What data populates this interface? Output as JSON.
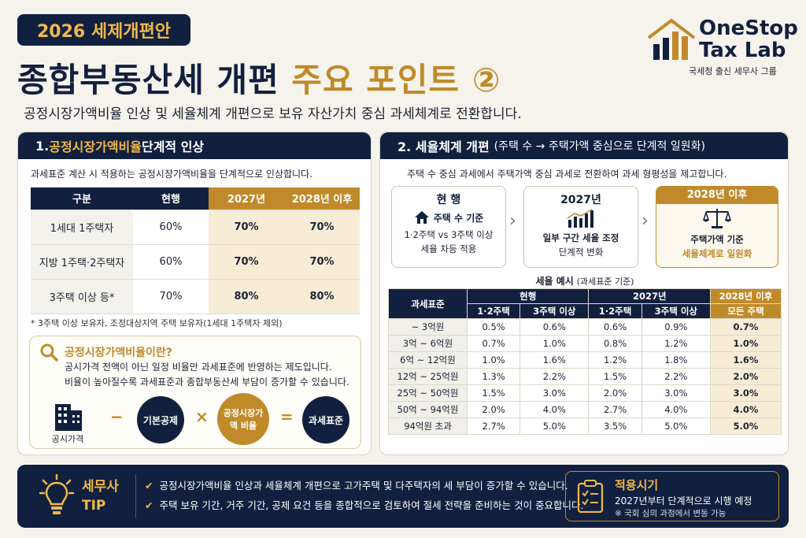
{
  "header": {
    "badge": "2026 세제개편안",
    "title_main": "종합부동산세 개편 ",
    "title_highlight": "주요 포인트 ②",
    "subtitle": "공정시장가액비율 인상 및 세율체계 개편으로 보유 자산가치 중심 과세체계로 전환합니다."
  },
  "logo": {
    "line1": "OneStop",
    "line2": "Tax Lab",
    "tagline": "국세청 출신 세무사 그룹"
  },
  "left": {
    "heading_prefix": "1. ",
    "heading_accent": "공정시장가액비율",
    "heading_suffix": " 단계적 인상",
    "desc": "과세표준 계산 시 적용하는 공정시장가액비율을 단계적으로 인상합니다.",
    "table": {
      "headers": [
        "구분",
        "현행",
        "2027년",
        "2028년 이후"
      ],
      "rows": [
        [
          "1세대 1주택자",
          "60%",
          "70%",
          "70%"
        ],
        [
          "지방 1주택·2주택자",
          "60%",
          "70%",
          "70%"
        ],
        [
          "3주택 이상 등*",
          "70%",
          "80%",
          "80%"
        ]
      ]
    },
    "note": "* 3주택 이상 보유자, 조정대상지역 주택 보유자(1세대 1주택자 제외)",
    "info": {
      "title": "공정시장가액비율이란?",
      "line1": "공시가격 전액이 아닌 일정 비율만 과세표준에 반영하는 제도입니다.",
      "line2": "비율이 높아질수록 과세표준과 종합부동산세 부담이 증가할 수 있습니다.",
      "formula": {
        "item1": "공시가격",
        "op1": "−",
        "item2": "기본공제",
        "op2": "×",
        "item3": "공정시장가액 비율",
        "op3": "=",
        "item4": "과세표준"
      }
    }
  },
  "right": {
    "heading_main": "2. 세율체계 개편",
    "heading_small": "(주택 수 → 주택가액 중심으로 단계적 일원화)",
    "desc": "주택 수 중심 과세에서 주택가액 중심 과세로 전환하여 과세 형평성을 제고합니다.",
    "flow": [
      {
        "title": "현 행",
        "sub": "주택 수 기준",
        "l1": "1·2주택 vs 3주택 이상",
        "l2": "세율 차등 적용"
      },
      {
        "title": "2027년",
        "sub": "",
        "l1": "일부 구간 세율 조정",
        "l2": "단계적 변화"
      },
      {
        "title": "2028년 이후",
        "sub": "",
        "l1": "주택가액 기준",
        "l2": "세율체계로 일원화"
      }
    ],
    "table_caption": "세율 예시",
    "table_caption_small": "(과세표준 기준)",
    "table": {
      "h_base": "과세표준",
      "h_current": "현행",
      "h_2027": "2027년",
      "h_2028": "2028년 이후",
      "sub_a": "1·2주택",
      "sub_b": "3주택 이상",
      "sub_all": "모든 주택",
      "rows": [
        [
          "~ 3억원",
          "0.5%",
          "0.6%",
          "0.6%",
          "0.9%",
          "0.7%"
        ],
        [
          "3억 ~ 6억원",
          "0.7%",
          "1.0%",
          "0.8%",
          "1.2%",
          "1.0%"
        ],
        [
          "6억 ~ 12억원",
          "1.0%",
          "1.6%",
          "1.2%",
          "1.8%",
          "1.6%"
        ],
        [
          "12억 ~ 25억원",
          "1.3%",
          "2.2%",
          "1.5%",
          "2.2%",
          "2.0%"
        ],
        [
          "25억 ~ 50억원",
          "1.5%",
          "3.0%",
          "2.0%",
          "3.0%",
          "3.0%"
        ],
        [
          "50억 ~ 94억원",
          "2.0%",
          "4.0%",
          "2.7%",
          "4.0%",
          "4.0%"
        ],
        [
          "94억원 초과",
          "2.7%",
          "5.0%",
          "3.5%",
          "5.0%",
          "5.0%"
        ]
      ]
    }
  },
  "bottom": {
    "tip_l1": "세무사",
    "tip_l2": "TIP",
    "tips": [
      "공정시장가액비율 인상과 세율체계 개편으로 고가주택 및 다주택자의 세 부담이 증가할 수 있습니다.",
      "주택 보유 기간, 거주 기간, 공제 요건 등을 종합적으로 검토하여 절세 전략을 준비하는 것이 중요합니다."
    ],
    "apply_title": "적용시기",
    "apply_l1": "2027년부터 단계적으로 시행 예정",
    "apply_l2": "※ 국회 심의 과정에서 변동 가능"
  },
  "colors": {
    "navy": "#12203f",
    "gold": "#c08a2b",
    "gold_light": "#f7ecd6"
  }
}
